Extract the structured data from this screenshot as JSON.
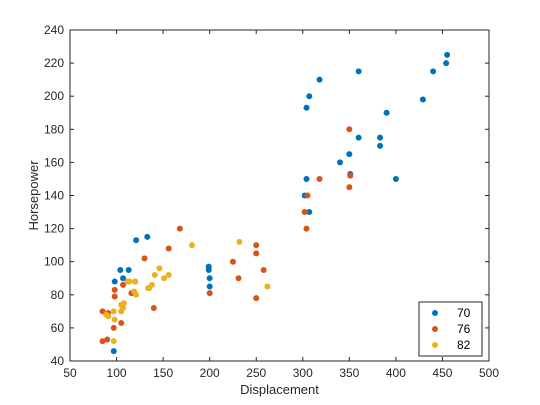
{
  "chart_data": {
    "type": "scatter",
    "xlabel": "Displacement",
    "ylabel": "Horsepower",
    "xlim": [
      50,
      500
    ],
    "ylim": [
      40,
      240
    ],
    "xticks": [
      50,
      100,
      150,
      200,
      250,
      300,
      350,
      400,
      450,
      500
    ],
    "yticks": [
      40,
      60,
      80,
      100,
      120,
      140,
      160,
      180,
      200,
      220,
      240
    ],
    "grid": false,
    "box": true,
    "legend_position": "bottom-right",
    "series": [
      {
        "name": "70",
        "color": "#0072BD",
        "points": [
          [
            97,
            46
          ],
          [
            98,
            88
          ],
          [
            104,
            95
          ],
          [
            107,
            90
          ],
          [
            113,
            95
          ],
          [
            121,
            113
          ],
          [
            133,
            115
          ],
          [
            199,
            97
          ],
          [
            199,
            95
          ],
          [
            200,
            90
          ],
          [
            200,
            85
          ],
          [
            302,
            140
          ],
          [
            304,
            150
          ],
          [
            304,
            193
          ],
          [
            307,
            200
          ],
          [
            307,
            130
          ],
          [
            318,
            210
          ],
          [
            340,
            160
          ],
          [
            350,
            165
          ],
          [
            351,
            153
          ],
          [
            360,
            215
          ],
          [
            360,
            175
          ],
          [
            383,
            175
          ],
          [
            383,
            170
          ],
          [
            390,
            190
          ],
          [
            400,
            150
          ],
          [
            429,
            198
          ],
          [
            440,
            215
          ],
          [
            454,
            220
          ],
          [
            455,
            225
          ]
        ]
      },
      {
        "name": "76",
        "color": "#D95319",
        "points": [
          [
            85,
            52
          ],
          [
            85,
            70
          ],
          [
            90,
            53
          ],
          [
            91,
            69
          ],
          [
            97,
            60
          ],
          [
            98,
            79
          ],
          [
            98,
            83
          ],
          [
            105,
            63
          ],
          [
            107,
            86
          ],
          [
            116,
            81
          ],
          [
            120,
            88
          ],
          [
            130,
            102
          ],
          [
            140,
            72
          ],
          [
            156,
            108
          ],
          [
            168,
            120
          ],
          [
            200,
            81
          ],
          [
            225,
            100
          ],
          [
            231,
            90
          ],
          [
            250,
            105
          ],
          [
            250,
            110
          ],
          [
            250,
            78
          ],
          [
            258,
            95
          ],
          [
            302,
            130
          ],
          [
            304,
            120
          ],
          [
            305,
            140
          ],
          [
            318,
            150
          ],
          [
            350,
            180
          ],
          [
            350,
            145
          ],
          [
            351,
            152
          ]
        ]
      },
      {
        "name": "82",
        "color": "#EDB120",
        "points": [
          [
            89,
            68
          ],
          [
            91,
            67
          ],
          [
            97,
            52
          ],
          [
            97,
            70
          ],
          [
            98,
            65
          ],
          [
            105,
            70
          ],
          [
            105,
            74
          ],
          [
            107,
            72
          ],
          [
            108,
            75
          ],
          [
            112,
            88
          ],
          [
            114,
            88
          ],
          [
            119,
            82
          ],
          [
            120,
            88
          ],
          [
            121,
            80
          ],
          [
            134,
            84
          ],
          [
            135,
            84
          ],
          [
            138,
            86
          ],
          [
            141,
            92
          ],
          [
            146,
            96
          ],
          [
            151,
            90
          ],
          [
            156,
            92
          ],
          [
            181,
            110
          ],
          [
            232,
            112
          ],
          [
            262,
            85
          ]
        ]
      }
    ]
  }
}
